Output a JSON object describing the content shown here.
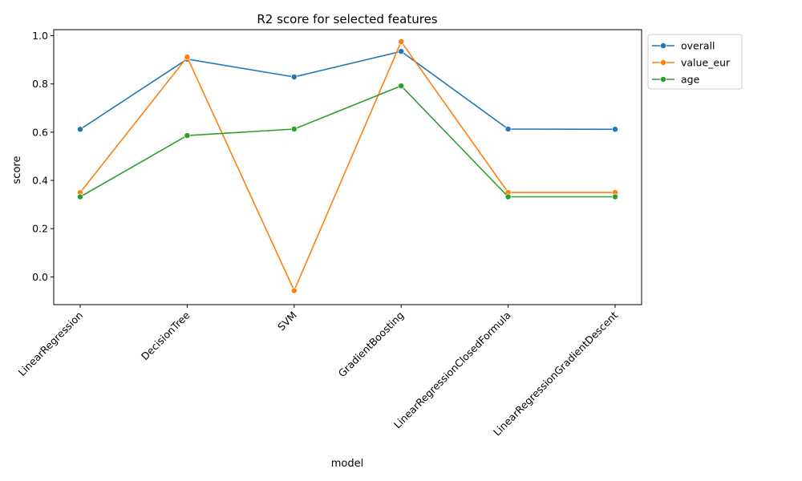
{
  "chart_data": {
    "type": "line",
    "title": "R2 score for selected features",
    "xlabel": "model",
    "ylabel": "score",
    "categories": [
      "LinearRegression",
      "DecisionTree",
      "SVM",
      "GradientBoosting",
      "LinearRegressionClosedFormula",
      "LinearRegressionGradientDescent"
    ],
    "ylim": [
      -0.115,
      1.025
    ],
    "yticks": [
      "0.0",
      "0.2",
      "0.4",
      "0.6",
      "0.8",
      "1.0"
    ],
    "grid": false,
    "legend_position": "outside-top-right",
    "markers": "circle",
    "series": [
      {
        "name": "overall",
        "color": "#1f77b4",
        "values": [
          0.612,
          0.903,
          0.829,
          0.935,
          0.613,
          0.612
        ]
      },
      {
        "name": "value_eur",
        "color": "#ff7f0e",
        "values": [
          0.35,
          0.911,
          -0.057,
          0.975,
          0.35,
          0.35
        ]
      },
      {
        "name": "age",
        "color": "#2ca02c",
        "values": [
          0.332,
          0.586,
          0.613,
          0.792,
          0.332,
          0.332
        ]
      }
    ]
  }
}
